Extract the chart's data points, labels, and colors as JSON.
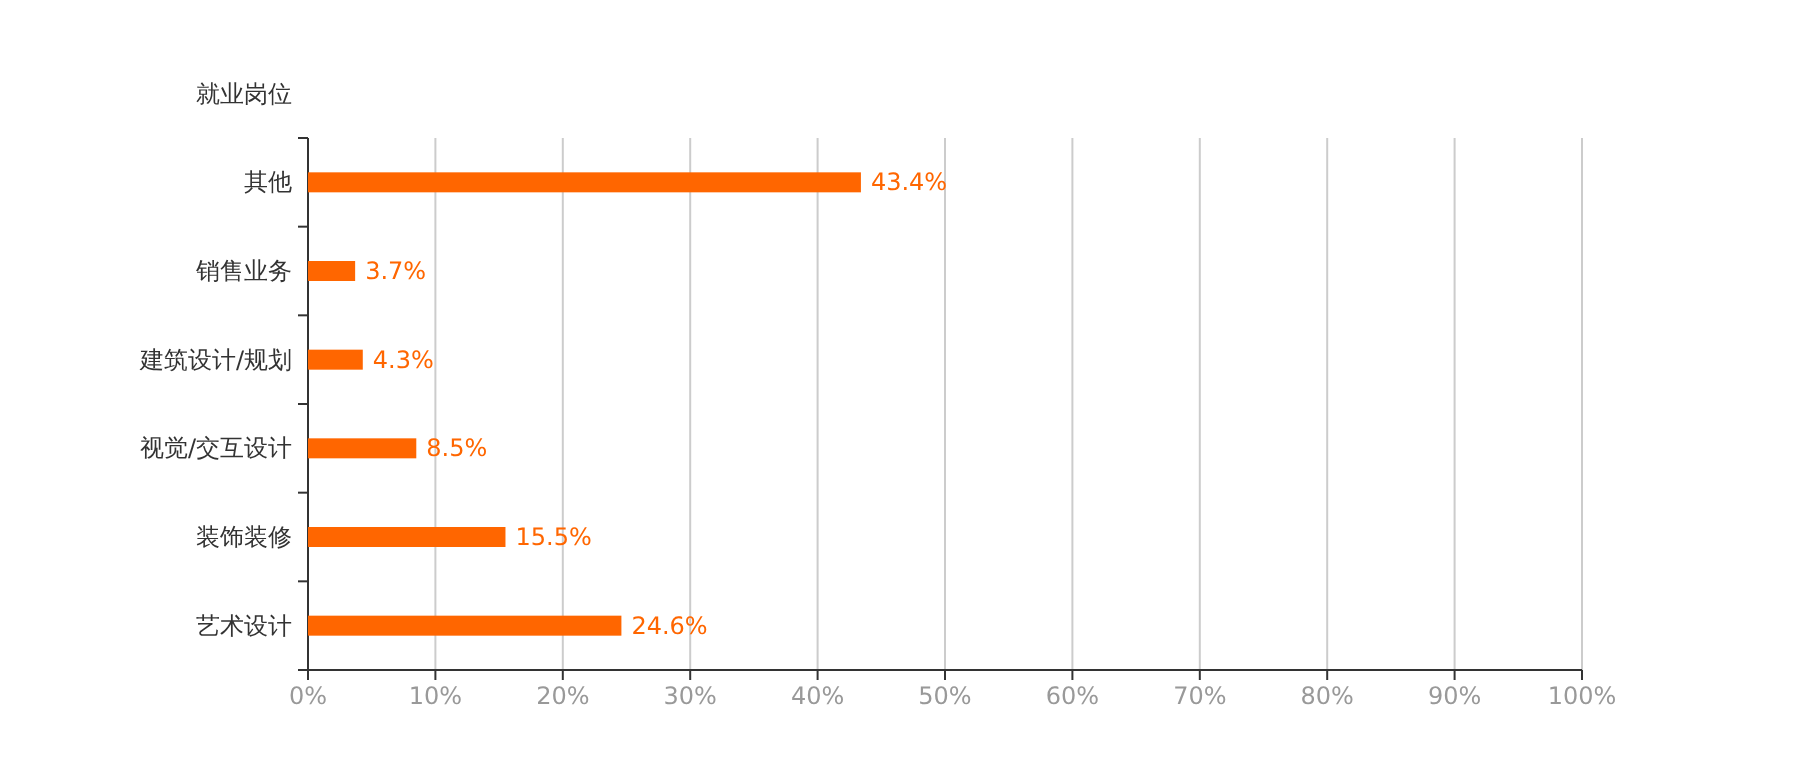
{
  "chart_data": {
    "type": "bar",
    "orientation": "horizontal",
    "ylabel": "就业岗位",
    "categories": [
      "其他",
      "销售业务",
      "建筑设计/规划",
      "视觉/交互设计",
      "装饰装修",
      "艺术设计"
    ],
    "values": [
      43.4,
      3.7,
      4.3,
      8.5,
      15.5,
      24.6
    ],
    "value_labels": [
      "43.4%",
      "3.7%",
      "4.3%",
      "8.5%",
      "15.5%",
      "24.6%"
    ],
    "color": "#ff6600",
    "xlim": [
      0,
      100
    ],
    "xticks": [
      {
        "value": 0,
        "label": "0%"
      },
      {
        "value": 10,
        "label": "10%"
      },
      {
        "value": 20,
        "label": "20%"
      },
      {
        "value": 30,
        "label": "30%"
      },
      {
        "value": 40,
        "label": "40%"
      },
      {
        "value": 50,
        "label": "50%"
      },
      {
        "value": 60,
        "label": "60%"
      },
      {
        "value": 70,
        "label": "70%"
      },
      {
        "value": 80,
        "label": "80%"
      },
      {
        "value": 90,
        "label": "90%"
      },
      {
        "value": 100,
        "label": "100%"
      }
    ],
    "grid": "x"
  }
}
